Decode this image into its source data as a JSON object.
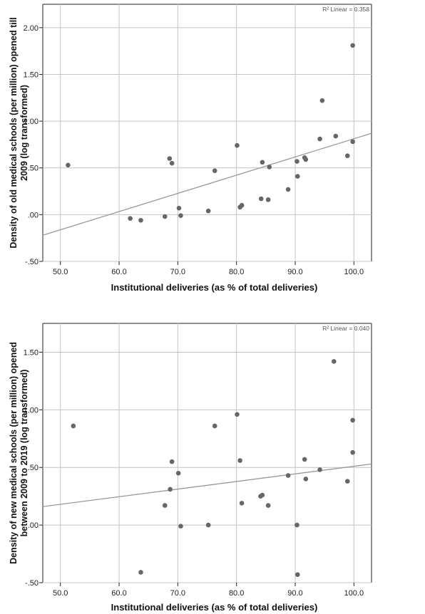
{
  "chart_data": [
    {
      "type": "scatter",
      "title": "",
      "xlabel": "Institutional deliveries (as % of total deliveries)",
      "ylabel_lines": [
        "Density of old medical schools (per million) opened till",
        "2009 (log transformed)"
      ],
      "xlim": [
        47,
        103
      ],
      "ylim": [
        -0.5,
        2.25
      ],
      "x_ticks": [
        "50.0",
        "60.0",
        "70.0",
        "80.0",
        "90.0",
        "100.0"
      ],
      "y_ticks": [
        "-.50",
        ".00",
        ".50",
        "1.00",
        "1.50",
        "2.00"
      ],
      "grid": true,
      "fit_label": "R² Linear = 0.358",
      "fit_line": {
        "x": [
          47,
          103
        ],
        "y": [
          -0.22,
          0.87
        ]
      },
      "points": [
        {
          "x": 51.3,
          "y": 0.53
        },
        {
          "x": 61.9,
          "y": -0.04
        },
        {
          "x": 63.7,
          "y": -0.06
        },
        {
          "x": 67.8,
          "y": -0.02
        },
        {
          "x": 68.6,
          "y": 0.6
        },
        {
          "x": 69.0,
          "y": 0.55
        },
        {
          "x": 70.2,
          "y": 0.07
        },
        {
          "x": 70.5,
          "y": -0.01
        },
        {
          "x": 75.2,
          "y": 0.04
        },
        {
          "x": 76.3,
          "y": 0.47
        },
        {
          "x": 80.1,
          "y": 0.74
        },
        {
          "x": 80.6,
          "y": 0.08
        },
        {
          "x": 80.9,
          "y": 0.1
        },
        {
          "x": 84.2,
          "y": 0.17
        },
        {
          "x": 84.4,
          "y": 0.56
        },
        {
          "x": 85.4,
          "y": 0.16
        },
        {
          "x": 85.6,
          "y": 0.51
        },
        {
          "x": 88.8,
          "y": 0.27
        },
        {
          "x": 90.3,
          "y": 0.57
        },
        {
          "x": 90.4,
          "y": 0.41
        },
        {
          "x": 91.6,
          "y": 0.61
        },
        {
          "x": 91.8,
          "y": 0.59
        },
        {
          "x": 94.2,
          "y": 0.81
        },
        {
          "x": 94.6,
          "y": 1.22
        },
        {
          "x": 96.9,
          "y": 0.84
        },
        {
          "x": 98.9,
          "y": 0.63
        },
        {
          "x": 99.8,
          "y": 0.78
        },
        {
          "x": 99.8,
          "y": 1.81
        }
      ]
    },
    {
      "type": "scatter",
      "title": "",
      "xlabel": "Institutional deliveries (as % of total deliveries)",
      "ylabel_lines": [
        "Density of new medical schools (per million) opened",
        "between 2009 to 2019 (log transformed)"
      ],
      "xlim": [
        47,
        103
      ],
      "ylim": [
        -0.5,
        1.75
      ],
      "x_ticks": [
        "50.0",
        "60.0",
        "70.0",
        "80.0",
        "90.0",
        "100.0"
      ],
      "y_ticks": [
        "-.50",
        ".00",
        ".50",
        "1.00",
        "1.50"
      ],
      "grid": true,
      "fit_label": "R² Linear = 0.040",
      "fit_line": {
        "x": [
          47,
          103
        ],
        "y": [
          0.16,
          0.53
        ]
      },
      "points": [
        {
          "x": 52.2,
          "y": 0.86
        },
        {
          "x": 63.7,
          "y": -0.41
        },
        {
          "x": 67.8,
          "y": 0.17
        },
        {
          "x": 68.7,
          "y": 0.31
        },
        {
          "x": 69.0,
          "y": 0.55
        },
        {
          "x": 70.1,
          "y": 0.45
        },
        {
          "x": 70.5,
          "y": -0.01
        },
        {
          "x": 75.2,
          "y": 0.0
        },
        {
          "x": 76.3,
          "y": 0.86
        },
        {
          "x": 80.1,
          "y": 0.96
        },
        {
          "x": 80.6,
          "y": 0.56
        },
        {
          "x": 80.9,
          "y": 0.19
        },
        {
          "x": 84.1,
          "y": 0.25
        },
        {
          "x": 84.4,
          "y": 0.26
        },
        {
          "x": 85.4,
          "y": 0.17
        },
        {
          "x": 88.8,
          "y": 0.43
        },
        {
          "x": 90.3,
          "y": 0.0
        },
        {
          "x": 90.4,
          "y": -0.43
        },
        {
          "x": 91.6,
          "y": 0.57
        },
        {
          "x": 91.8,
          "y": 0.4
        },
        {
          "x": 94.2,
          "y": 0.48
        },
        {
          "x": 96.6,
          "y": 1.42
        },
        {
          "x": 98.9,
          "y": 0.38
        },
        {
          "x": 99.8,
          "y": 0.63
        },
        {
          "x": 99.8,
          "y": 0.91
        }
      ]
    }
  ],
  "colors": {
    "point": "#666666",
    "grid": "#c4c4c4",
    "axis": "#222222",
    "fit": "#999999"
  }
}
